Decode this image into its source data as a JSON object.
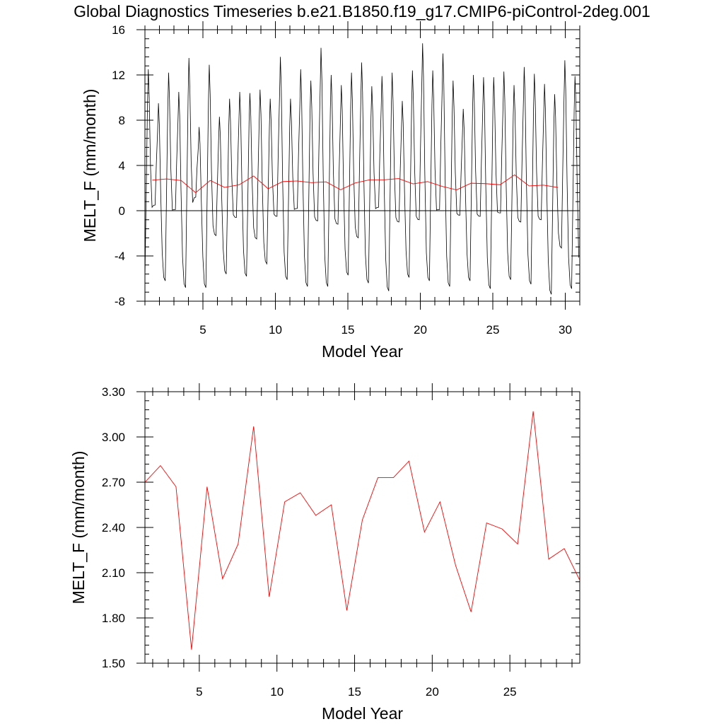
{
  "title": "Global Diagnostics Timeseries b.e21.B1850.f19_g17.CMIP6-piControl-2deg.001",
  "chart_data": [
    {
      "type": "line",
      "xlabel": "Model Year",
      "ylabel": "MELT_F (mm/month)",
      "xlim": [
        1,
        31
      ],
      "ylim": [
        -8,
        16
      ],
      "xticks": [
        5,
        10,
        15,
        20,
        25,
        30
      ],
      "xtick_labels": [
        "5",
        "10",
        "15",
        "20",
        "25",
        "30"
      ],
      "yticks": [
        -8,
        -4,
        0,
        4,
        8,
        12,
        16
      ],
      "ytick_labels": [
        "-8",
        "-4",
        "0",
        "4",
        "8",
        "12",
        "16"
      ],
      "zero_line": true,
      "series": [
        {
          "color": "#000000",
          "values_monthly_start_year": 1,
          "monthly_peaks": [
            12.5,
            9.5,
            12.2,
            10.5,
            13.5,
            7.4,
            12.9,
            8.3,
            9.9,
            10.5,
            10.4,
            10.7,
            9.9,
            13.6,
            9.9,
            12.5,
            11.5,
            14.4,
            12.0,
            11.1,
            12.2,
            13.1,
            11.0,
            11.9,
            12.2,
            9.7,
            12.4,
            14.8,
            12.4,
            13.9,
            11.5,
            9.0,
            12.0,
            11.8,
            11.8,
            12.3,
            11.1,
            12.7,
            12.1,
            11.2,
            10.3,
            13.3,
            11.9
          ],
          "monthly_troughs": [
            -6.0,
            0.5,
            -6.2,
            0.1,
            -6.8,
            1.2,
            -6.8,
            -2.2,
            -5.6,
            -0.6,
            -5.8,
            -2.5,
            -4.7,
            -0.5,
            -6.1,
            0.2,
            -6.7,
            -0.9,
            -6.7,
            -1.2,
            -5.7,
            -2.4,
            -6.4,
            0.3,
            -7.1,
            -1.0,
            -5.9,
            -0.8,
            -6.2,
            0.1,
            -6.7,
            -0.4,
            -6.2,
            -0.5,
            -6.9,
            -0.2,
            -6.1,
            -1.0,
            -6.5,
            -0.8,
            -7.4,
            -3.3,
            -6.9
          ]
        },
        {
          "color": "#ff0000",
          "x": [
            1.5,
            2.5,
            3.5,
            4.5,
            5.5,
            6.5,
            7.5,
            8.5,
            9.5,
            10.5,
            11.5,
            12.5,
            13.5,
            14.5,
            15.5,
            16.5,
            17.5,
            18.5,
            19.5,
            20.5,
            21.5,
            22.5,
            23.5,
            24.5,
            25.5,
            26.5,
            27.5,
            28.5,
            29.5
          ],
          "values": [
            2.7,
            2.81,
            2.67,
            1.59,
            2.67,
            2.06,
            2.29,
            3.07,
            1.94,
            2.57,
            2.63,
            2.48,
            2.55,
            1.85,
            2.45,
            2.73,
            2.73,
            2.84,
            2.37,
            2.57,
            2.15,
            1.84,
            2.43,
            2.39,
            2.29,
            3.17,
            2.19,
            2.26,
            2.05
          ]
        }
      ]
    },
    {
      "type": "line",
      "xlabel": "Model Year",
      "ylabel": "MELT_F (mm/month)",
      "xlim": [
        1.5,
        29.5
      ],
      "ylim": [
        1.5,
        3.3
      ],
      "xticks": [
        5,
        10,
        15,
        20,
        25
      ],
      "xtick_labels": [
        "5",
        "10",
        "15",
        "20",
        "25"
      ],
      "yticks": [
        1.5,
        1.8,
        2.1,
        2.4,
        2.7,
        3.0,
        3.3
      ],
      "ytick_labels": [
        "1.50",
        "1.80",
        "2.10",
        "2.40",
        "2.70",
        "3.00",
        "3.30"
      ],
      "series": [
        {
          "color": "#ff0000",
          "x": [
            1.5,
            2.5,
            3.5,
            4.5,
            5.5,
            6.5,
            7.5,
            8.5,
            9.5,
            10.5,
            11.5,
            12.5,
            13.5,
            14.5,
            15.5,
            16.5,
            17.5,
            18.5,
            19.5,
            20.5,
            21.5,
            22.5,
            23.5,
            24.5,
            25.5,
            26.5,
            27.5,
            28.5,
            29.5
          ],
          "values": [
            2.7,
            2.81,
            2.67,
            1.59,
            2.67,
            2.06,
            2.29,
            3.07,
            1.94,
            2.57,
            2.63,
            2.48,
            2.55,
            1.85,
            2.45,
            2.73,
            2.73,
            2.84,
            2.37,
            2.57,
            2.15,
            1.84,
            2.43,
            2.39,
            2.29,
            3.17,
            2.19,
            2.26,
            2.05
          ]
        }
      ]
    }
  ]
}
